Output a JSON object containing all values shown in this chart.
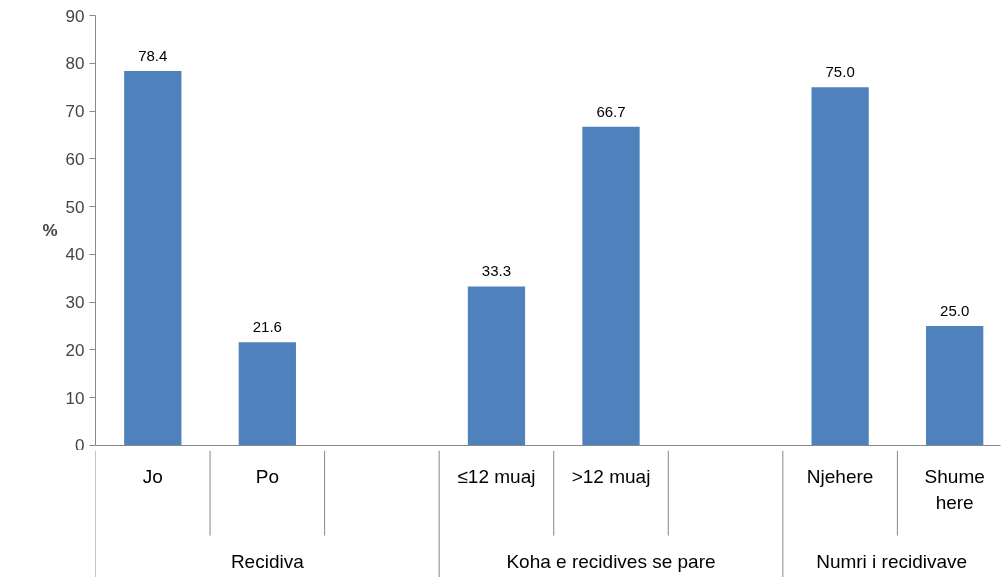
{
  "chart_data": {
    "type": "bar",
    "ylabel": "%",
    "categories": [
      "Jo",
      "Po",
      null,
      "≤12 muaj",
      ">12 muaj",
      null,
      "Njehere",
      "Shume here"
    ],
    "values": [
      78.4,
      21.6,
      null,
      33.3,
      66.7,
      null,
      75.0,
      25.0
    ],
    "value_labels": [
      "78.4",
      "21.6",
      null,
      "33.3",
      "66.7",
      null,
      "75.0",
      "25.0"
    ],
    "color": "#4f81bd",
    "ylim": [
      0,
      90
    ],
    "yticks": [
      0,
      10,
      20,
      30,
      40,
      50,
      60,
      70,
      80,
      90
    ],
    "annotations": [
      "Recidiva",
      "Koha e recidives se pare",
      "Numri i recidivave"
    ]
  }
}
